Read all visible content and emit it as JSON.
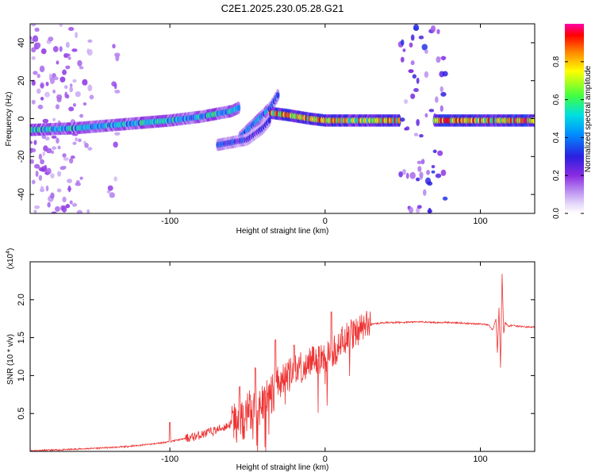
{
  "title": "C2E1.2025.230.05.28.G21",
  "colors": {
    "snr_line": "#ee3333",
    "colormap": [
      "#ffffff",
      "#e6d8fb",
      "#b98cf0",
      "#8a2be2",
      "#2a1fe0",
      "#0090ff",
      "#00e0e0",
      "#40ff40",
      "#ffff00",
      "#ff8800",
      "#ff0000",
      "#ff00aa"
    ]
  },
  "chart_data": [
    {
      "type": "heatmap",
      "xlabel": "Height of straight line (km)",
      "ylabel": "Frequency (Hz)",
      "xlim": [
        -190,
        135
      ],
      "ylim": [
        -50,
        50
      ],
      "xticks": [
        -100,
        0,
        100
      ],
      "yticks": [
        -40,
        -20,
        0,
        20,
        40
      ],
      "colorbar": {
        "label": "Normalized spectral amplitude",
        "range": [
          0,
          1
        ],
        "ticks": [
          "0.0",
          "0.2",
          "0.4",
          "0.6",
          "0.8"
        ]
      },
      "ridges": [
        {
          "x": [
            -190,
            -160,
            -130,
            -100,
            -80,
            -60,
            -55
          ],
          "y": [
            -6,
            -5,
            -3,
            -1,
            1,
            4,
            6
          ],
          "amplitude": 0.55
        },
        {
          "x": [
            -55,
            -45,
            -35,
            -30
          ],
          "y": [
            -10,
            -2,
            6,
            13
          ],
          "amplitude": 0.45
        },
        {
          "x": [
            -35,
            -25,
            -10,
            0,
            20,
            48
          ],
          "y": [
            3,
            2,
            0,
            -1,
            -1,
            -1
          ],
          "amplitude": 0.85
        },
        {
          "x": [
            70,
            100,
            135
          ],
          "y": [
            -1,
            -1,
            -1
          ],
          "amplitude": 0.9
        },
        {
          "x": [
            -70,
            -50,
            -40,
            -35
          ],
          "y": [
            -14,
            -11,
            -5,
            0
          ],
          "amplitude": 0.35
        }
      ]
    },
    {
      "type": "line",
      "xlabel": "Height of straight line (km)",
      "ylabel": "SNR (10 * v/v)",
      "scale_note": "(x10^4)",
      "scale_base": "(x10",
      "scale_exp": "4",
      "scale_close": ")",
      "xlim": [
        -190,
        135
      ],
      "ylim": [
        0,
        2.5
      ],
      "xticks": [
        -100,
        0,
        100
      ],
      "yticks": [
        "0.5",
        "1.0",
        "1.5",
        "2.0"
      ],
      "series": [
        {
          "x": [
            -190,
            -170,
            -150,
            -130,
            -120,
            -110,
            -100,
            -95,
            -90,
            -85,
            -80,
            -75,
            -70,
            -65,
            -60,
            -55,
            -50,
            -45,
            -42,
            -40,
            -38,
            -35,
            -32,
            -30,
            -28,
            -25,
            -22,
            -20,
            -18,
            -15,
            -12,
            -10,
            -8,
            -5,
            -2,
            0,
            3,
            5,
            8,
            10,
            15,
            20,
            25,
            30,
            40,
            50,
            60,
            70,
            80,
            90,
            100,
            105,
            108,
            110,
            111,
            112,
            113,
            114,
            115,
            116,
            118,
            120,
            125,
            130,
            135
          ],
          "y": [
            0.01,
            0.02,
            0.04,
            0.06,
            0.08,
            0.1,
            0.13,
            0.15,
            0.17,
            0.19,
            0.22,
            0.25,
            0.28,
            0.32,
            0.37,
            0.42,
            0.48,
            0.55,
            0.6,
            0.65,
            0.7,
            0.78,
            0.85,
            0.9,
            0.93,
            0.98,
            1.02,
            1.05,
            1.08,
            1.12,
            1.15,
            1.18,
            1.2,
            1.22,
            1.23,
            1.25,
            1.28,
            1.32,
            1.38,
            1.42,
            1.5,
            1.58,
            1.65,
            1.68,
            1.7,
            1.7,
            1.71,
            1.7,
            1.7,
            1.69,
            1.68,
            1.67,
            1.6,
            1.75,
            1.3,
            1.9,
            1.1,
            2.35,
            1.55,
            1.7,
            1.65,
            1.66,
            1.65,
            1.64,
            1.64
          ],
          "spikes": [
            {
              "x": -100,
              "y": 0.38
            },
            {
              "x": -32,
              "y": 1.47
            },
            {
              "x": -20,
              "y": 1.4
            },
            {
              "x": 4,
              "y": 1.84
            },
            {
              "x": -45,
              "y": 1.1
            },
            {
              "x": -55,
              "y": 0.85
            }
          ]
        }
      ]
    }
  ]
}
